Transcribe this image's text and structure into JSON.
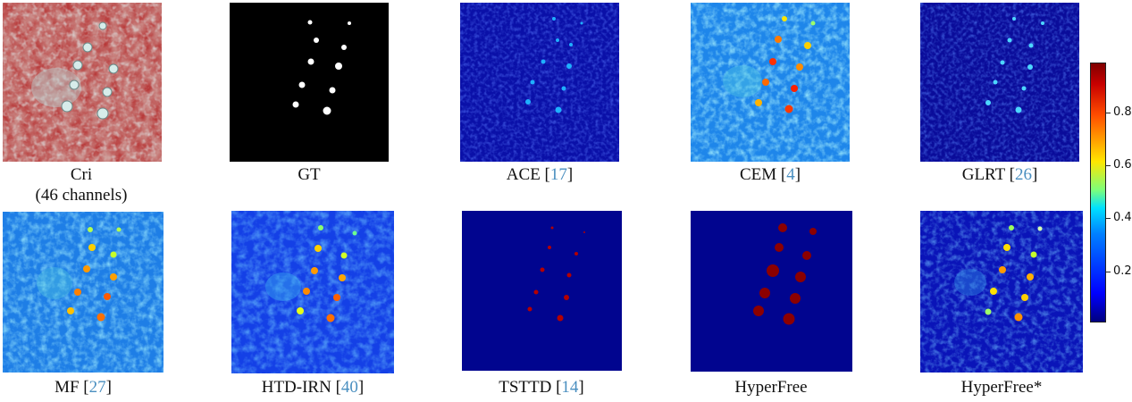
{
  "panels": [
    {
      "label": "Cri",
      "sub": "(46 channels)",
      "ref": ""
    },
    {
      "label": "GT",
      "ref": ""
    },
    {
      "label": "ACE",
      "ref": "17"
    },
    {
      "label": "CEM",
      "ref": "4"
    },
    {
      "label": "GLRT",
      "ref": "26"
    },
    {
      "label": "MF",
      "ref": "27"
    },
    {
      "label": "HTD-IRN",
      "ref": "40"
    },
    {
      "label": "TSTTD",
      "ref": "14"
    },
    {
      "label": "HyperFree",
      "ref": ""
    },
    {
      "label": "HyperFree*",
      "ref": ""
    }
  ],
  "colorbar": {
    "ticks": [
      "0.2",
      "0.4",
      "0.6",
      "0.8"
    ],
    "colormap": "jet",
    "range": [
      0,
      1
    ]
  }
}
